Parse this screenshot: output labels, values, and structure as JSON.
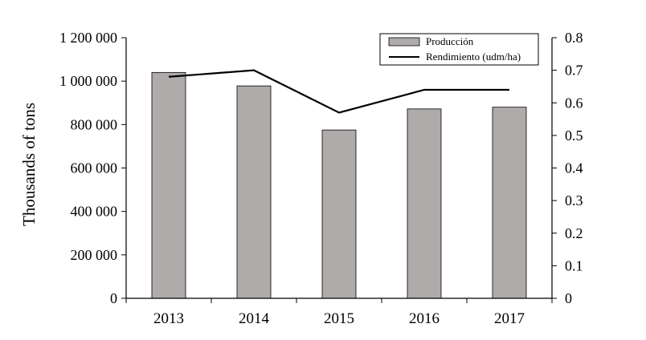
{
  "chart_data": {
    "type": "bar",
    "categories": [
      "2013",
      "2014",
      "2015",
      "2016",
      "2017"
    ],
    "series": [
      {
        "name": "Producción",
        "type": "bar",
        "axis": "left",
        "values": [
          1040000,
          978000,
          775000,
          872000,
          880000
        ],
        "color": "#b0abab"
      },
      {
        "name": "Rendimiento (udm/ha)",
        "type": "line",
        "axis": "right",
        "values": [
          0.68,
          0.7,
          0.57,
          0.64,
          0.64
        ],
        "color": "#000000"
      }
    ],
    "ylabel": "Thousands of tons",
    "ylim": [
      0,
      1200000
    ],
    "y2lim": [
      0,
      0.8
    ],
    "yticks": [
      "0",
      "200 000",
      "400 000",
      "600 000",
      "800 000",
      "1 000 000",
      "1 200 000"
    ],
    "y2ticks": [
      "0",
      "0.1",
      "0.2",
      "0.3",
      "0.4",
      "0.5",
      "0.6",
      "0.7",
      "0.8"
    ],
    "legend": "top-right",
    "grid": false
  }
}
